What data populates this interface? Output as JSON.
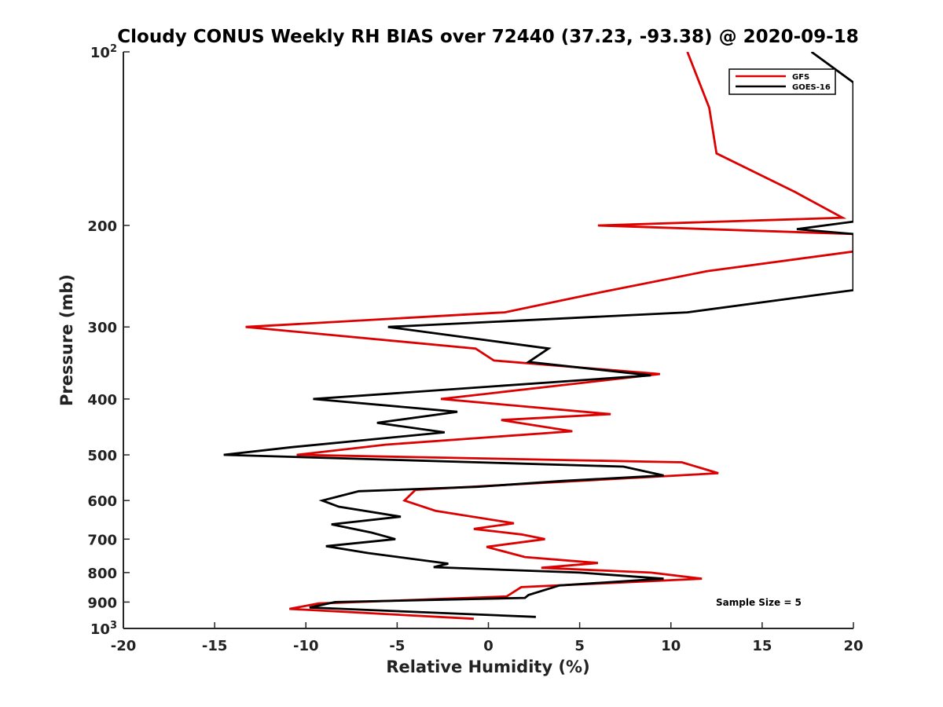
{
  "chart_data": {
    "type": "line",
    "title": "Cloudy CONUS Weekly RH BIAS over 72440 (37.23, -93.38) @ 2020-09-18",
    "xlabel": "Relative Humidity (%)",
    "ylabel": "Pressure (mb)",
    "xlim": [
      -20,
      20
    ],
    "ylim": [
      100,
      1000
    ],
    "y_scale": "log",
    "y_reversed": true,
    "grid": false,
    "legend_position": "top-right",
    "x_ticks": [
      "-20",
      "-15",
      "-10",
      "-5",
      "0",
      "5",
      "10",
      "15",
      "20"
    ],
    "y_ticks": [
      {
        "value": 100,
        "base": "10",
        "exp": "2"
      },
      {
        "value": 200,
        "label": "200"
      },
      {
        "value": 300,
        "label": "300"
      },
      {
        "value": 400,
        "label": "400"
      },
      {
        "value": 500,
        "label": "500"
      },
      {
        "value": 600,
        "label": "600"
      },
      {
        "value": 700,
        "label": "700"
      },
      {
        "value": 800,
        "label": "800"
      },
      {
        "value": 900,
        "label": "900"
      },
      {
        "value": 1000,
        "base": "10",
        "exp": "3"
      }
    ],
    "annotation": "Sample Size = 5",
    "series": [
      {
        "name": "GFS",
        "color": "#dd0000",
        "points": [
          [
            10.9,
            100
          ],
          [
            12.1,
            125
          ],
          [
            12.5,
            150
          ],
          [
            16.8,
            175
          ],
          [
            19.4,
            194
          ],
          [
            6.0,
            200
          ],
          [
            20.0,
            207
          ],
          [
            20.0,
            222
          ],
          [
            12.0,
            240
          ],
          [
            5.7,
            263
          ],
          [
            0.9,
            283
          ],
          [
            -13.3,
            300
          ],
          [
            -0.7,
            327
          ],
          [
            0.3,
            343
          ],
          [
            9.4,
            362
          ],
          [
            -2.6,
            400
          ],
          [
            6.7,
            425
          ],
          [
            0.7,
            435
          ],
          [
            4.6,
            455
          ],
          [
            -5.6,
            480
          ],
          [
            -10.5,
            500
          ],
          [
            10.6,
            515
          ],
          [
            12.6,
            538
          ],
          [
            -4.0,
            575
          ],
          [
            -4.6,
            600
          ],
          [
            -2.9,
            625
          ],
          [
            1.4,
            657
          ],
          [
            -0.8,
            672
          ],
          [
            1.8,
            687
          ],
          [
            3.1,
            700
          ],
          [
            -0.1,
            722
          ],
          [
            2.0,
            752
          ],
          [
            6.0,
            770
          ],
          [
            2.9,
            785
          ],
          [
            8.9,
            800
          ],
          [
            11.7,
            820
          ],
          [
            1.8,
            848
          ],
          [
            1.0,
            880
          ],
          [
            -9.3,
            905
          ],
          [
            -10.9,
            925
          ],
          [
            -0.8,
            962
          ]
        ]
      },
      {
        "name": "GOES-16",
        "color": "#000000",
        "points": [
          [
            17.7,
            100
          ],
          [
            20.0,
            113
          ],
          [
            20.0,
            197
          ],
          [
            16.9,
            203
          ],
          [
            20.0,
            207
          ],
          [
            20.0,
            259
          ],
          [
            18.0,
            264
          ],
          [
            10.9,
            283
          ],
          [
            -5.5,
            300
          ],
          [
            3.3,
            327
          ],
          [
            2.2,
            345
          ],
          [
            8.9,
            364
          ],
          [
            -9.6,
            400
          ],
          [
            -1.7,
            421
          ],
          [
            -6.1,
            440
          ],
          [
            -2.4,
            457
          ],
          [
            -10.8,
            485
          ],
          [
            -14.5,
            500
          ],
          [
            7.4,
            524
          ],
          [
            9.6,
            543
          ],
          [
            4.0,
            555
          ],
          [
            -0.6,
            568
          ],
          [
            -7.1,
            578
          ],
          [
            -9.1,
            600
          ],
          [
            -8.2,
            615
          ],
          [
            -4.8,
            640
          ],
          [
            -8.6,
            660
          ],
          [
            -6.4,
            682
          ],
          [
            -5.1,
            700
          ],
          [
            -8.9,
            720
          ],
          [
            -6.6,
            740
          ],
          [
            -2.2,
            772
          ],
          [
            -3.0,
            783
          ],
          [
            5.0,
            800
          ],
          [
            9.6,
            820
          ],
          [
            3.9,
            842
          ],
          [
            2.2,
            875
          ],
          [
            2.0,
            885
          ],
          [
            -8.4,
            900
          ],
          [
            -9.8,
            920
          ],
          [
            2.6,
            955
          ]
        ]
      }
    ]
  }
}
